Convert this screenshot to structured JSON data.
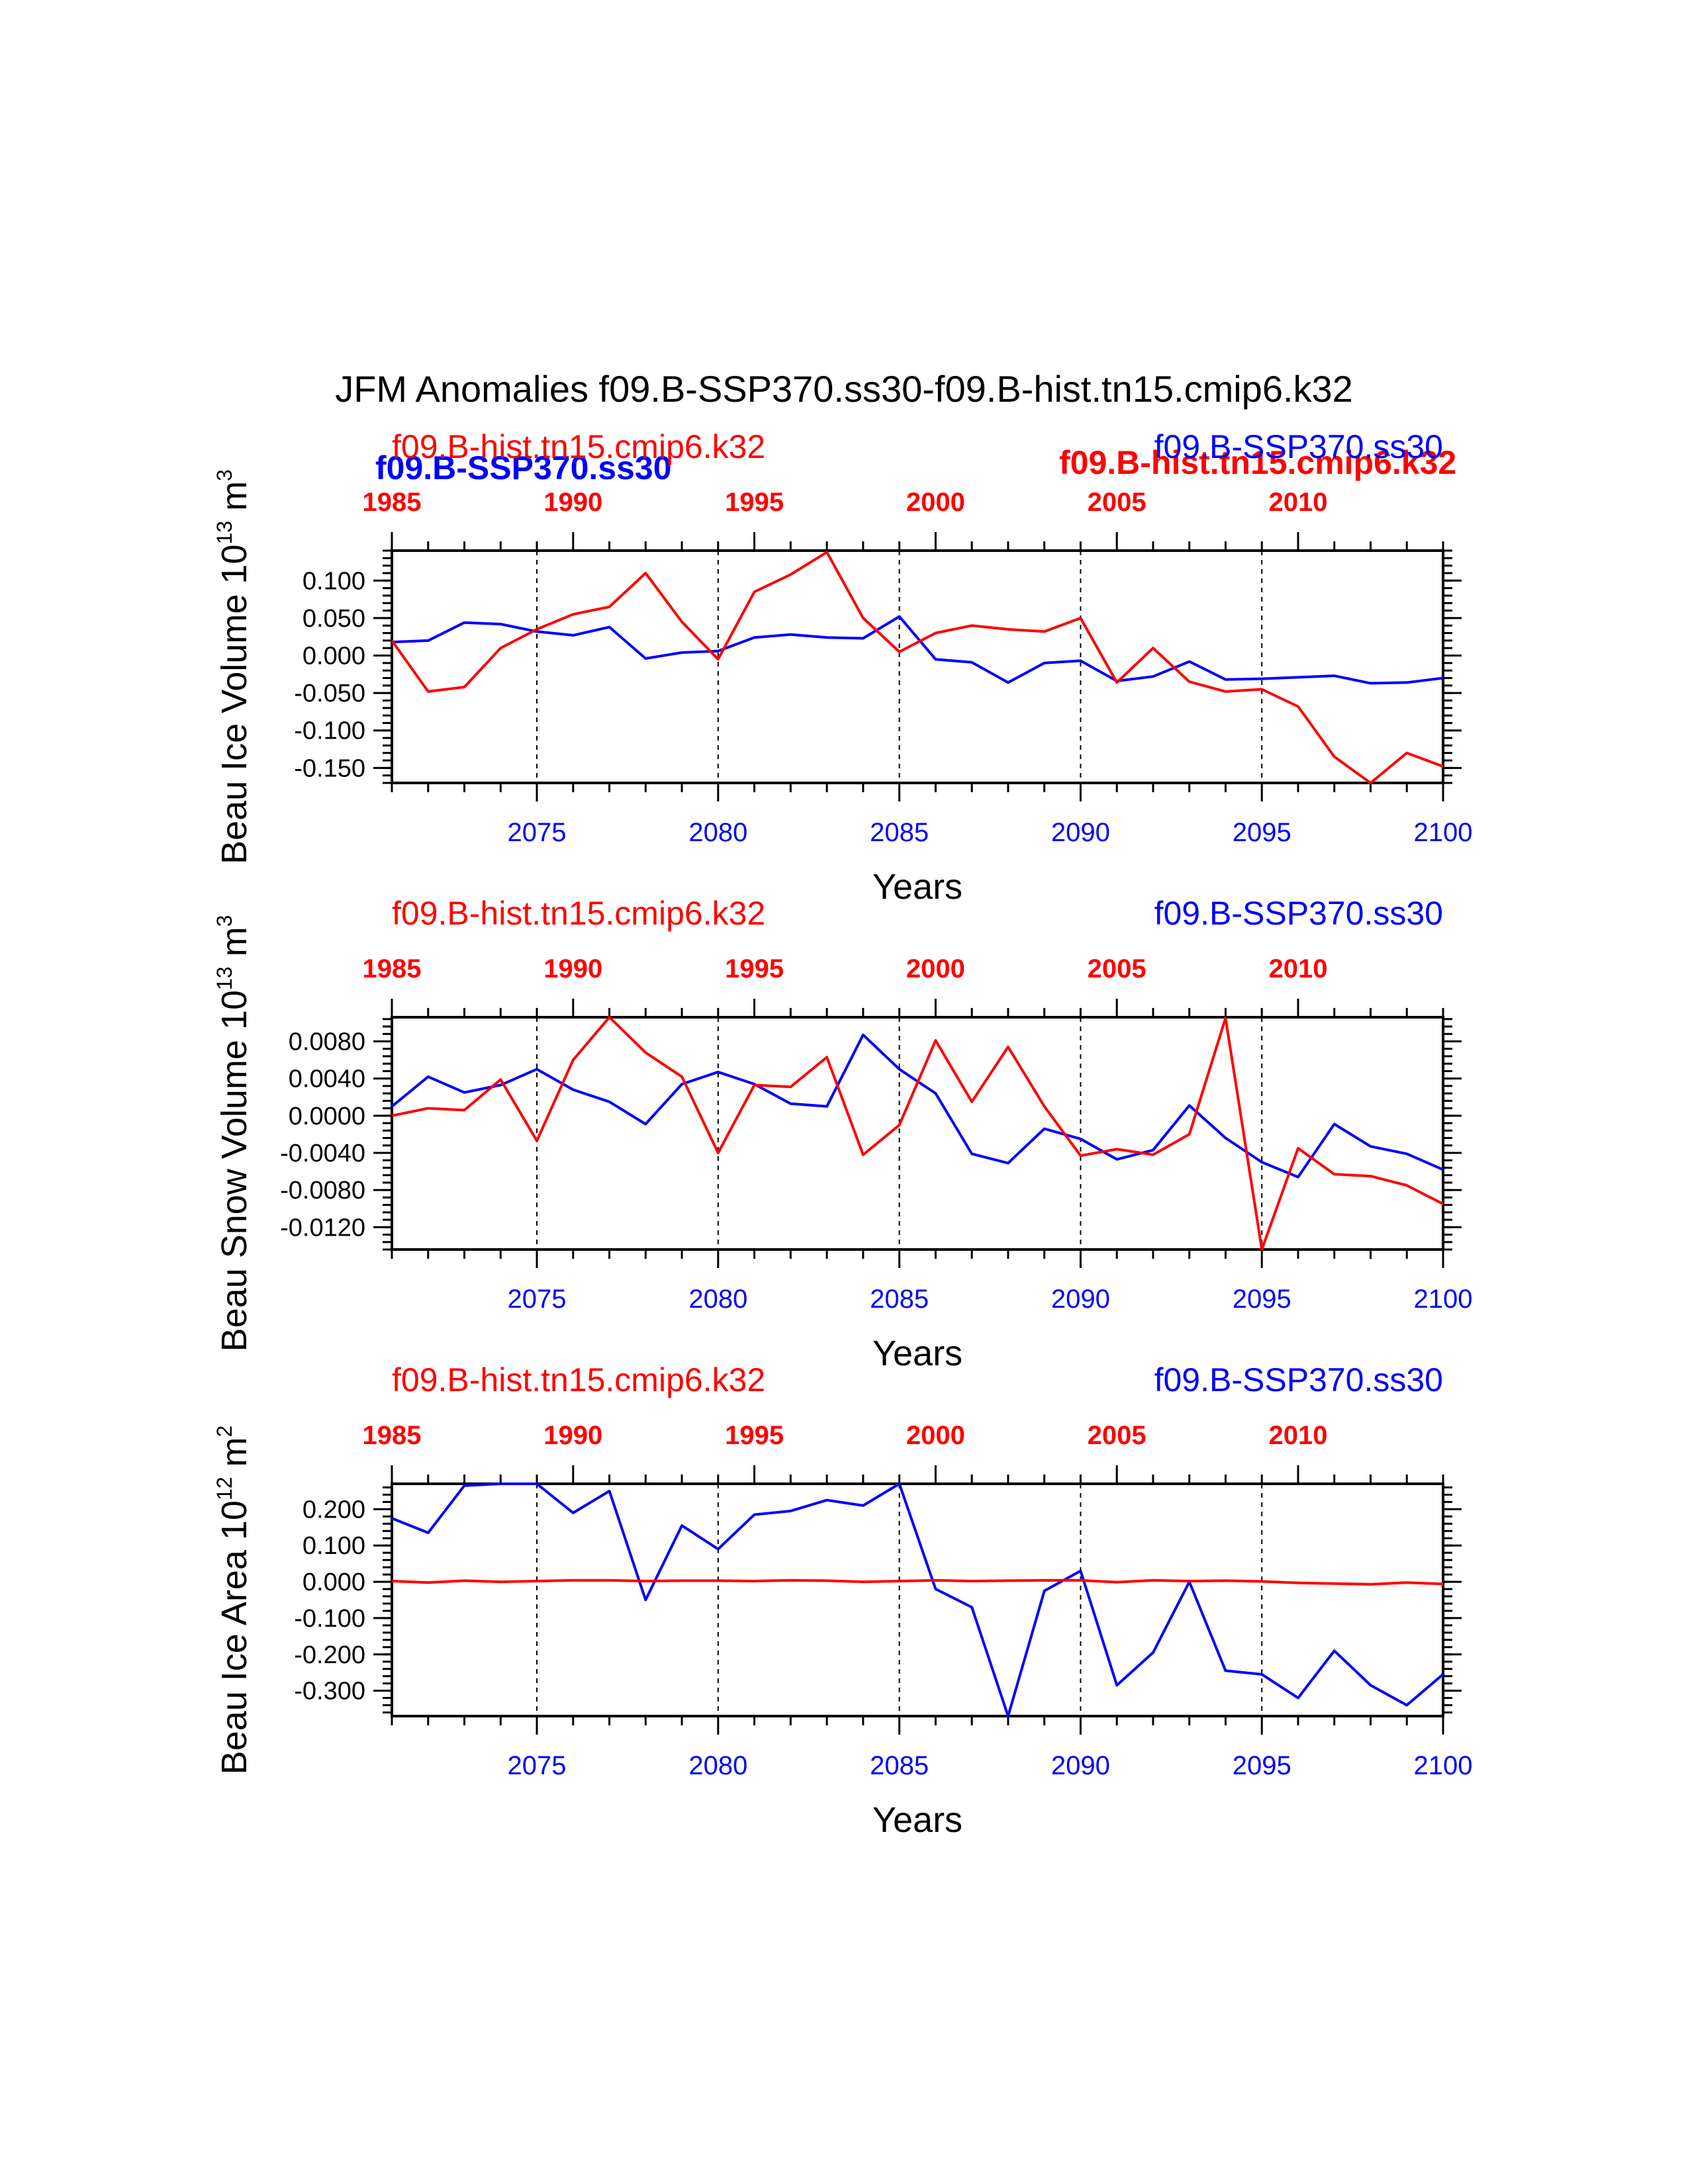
{
  "figure": {
    "title": "JFM Anomalies f09.B-SSP370.ss30-f09.B-hist.tn15.cmip6.k32",
    "colors": {
      "hist": "#ff0000",
      "ssp": "#0000ff",
      "axis": "#000000"
    }
  },
  "overlay_labels": [
    {
      "text": "f09.B-SSP370.ss30",
      "color": "#0000ff"
    },
    {
      "text": "f09.B-hist.tn15.cmip6.k32",
      "color": "#ff0000"
    }
  ],
  "chart_data": [
    {
      "type": "line",
      "title_left": "f09.B-hist.tn15.cmip6.k32",
      "title_right": "f09.B-SSP370.ss30",
      "ylabel": "Beau Ice Volume 10",
      "ylabel_exp": "13",
      "ylabel_unit": " m",
      "ylabel_unit_exp": "3",
      "xlabel": "Years",
      "xlim": [
        2071,
        2100
      ],
      "ylim": [
        -0.17,
        0.14
      ],
      "yticks": [
        0.1,
        0.05,
        0.0,
        -0.05,
        -0.1,
        -0.15
      ],
      "ytick_labels": [
        "0.100",
        "0.050",
        "0.000",
        "-0.050",
        "-0.100",
        "-0.150"
      ],
      "x_bottom_ticks": [
        2075,
        2080,
        2085,
        2090,
        2095,
        2100
      ],
      "x_top_ticks": [
        "1985",
        "1990",
        "1995",
        "2000",
        "2005",
        "2010"
      ],
      "gridlines_x": [
        2075,
        2080,
        2085,
        2090,
        2095
      ],
      "series": [
        {
          "name": "f09.B-hist.tn15.cmip6.k32",
          "color": "#ff0000",
          "x": [
            2071,
            2072,
            2073,
            2074,
            2075,
            2076,
            2077,
            2078,
            2079,
            2080,
            2081,
            2082,
            2083,
            2084,
            2085,
            2086,
            2087,
            2088,
            2089,
            2090,
            2091,
            2092,
            2093,
            2094,
            2095,
            2096,
            2097,
            2098,
            2099,
            2100
          ],
          "values": [
            0.02,
            -0.048,
            -0.042,
            0.01,
            0.035,
            0.055,
            0.065,
            0.11,
            0.045,
            -0.005,
            0.085,
            0.108,
            0.138,
            0.05,
            0.005,
            0.03,
            0.04,
            0.035,
            0.032,
            0.05,
            -0.036,
            0.01,
            -0.035,
            -0.048,
            -0.045,
            -0.068,
            -0.135,
            -0.17,
            -0.13,
            -0.148
          ]
        },
        {
          "name": "f09.B-SSP370.ss30",
          "color": "#0000ff",
          "x": [
            2071,
            2072,
            2073,
            2074,
            2075,
            2076,
            2077,
            2078,
            2079,
            2080,
            2081,
            2082,
            2083,
            2084,
            2085,
            2086,
            2087,
            2088,
            2089,
            2090,
            2091,
            2092,
            2093,
            2094,
            2095,
            2096,
            2097,
            2098,
            2099,
            2100
          ],
          "values": [
            0.018,
            0.02,
            0.044,
            0.042,
            0.032,
            0.027,
            0.038,
            -0.004,
            0.004,
            0.006,
            0.024,
            0.028,
            0.024,
            0.023,
            0.052,
            -0.005,
            -0.009,
            -0.036,
            -0.01,
            -0.007,
            -0.034,
            -0.028,
            -0.008,
            -0.032,
            -0.031,
            -0.029,
            -0.027,
            -0.037,
            -0.036,
            -0.03
          ]
        }
      ]
    },
    {
      "type": "line",
      "title_left": "f09.B-hist.tn15.cmip6.k32",
      "title_right": "f09.B-SSP370.ss30",
      "ylabel": "Beau Snow Volume 10",
      "ylabel_exp": "13",
      "ylabel_unit": " m",
      "ylabel_unit_exp": "3",
      "xlabel": "Years",
      "xlim": [
        2071,
        2100
      ],
      "ylim": [
        -0.0144,
        0.0106
      ],
      "yticks": [
        0.008,
        0.004,
        0.0,
        -0.004,
        -0.008,
        -0.012
      ],
      "ytick_labels": [
        "0.0080",
        "0.0040",
        "0.0000",
        "-0.0040",
        "-0.0080",
        "-0.0120"
      ],
      "x_bottom_ticks": [
        2075,
        2080,
        2085,
        2090,
        2095,
        2100
      ],
      "x_top_ticks": [
        "1985",
        "1990",
        "1995",
        "2000",
        "2005",
        "2010"
      ],
      "gridlines_x": [
        2075,
        2080,
        2085,
        2090,
        2095
      ],
      "series": [
        {
          "name": "f09.B-hist.tn15.cmip6.k32",
          "color": "#ff0000",
          "x": [
            2071,
            2072,
            2073,
            2074,
            2075,
            2076,
            2077,
            2078,
            2079,
            2080,
            2081,
            2082,
            2083,
            2084,
            2085,
            2086,
            2087,
            2088,
            2089,
            2090,
            2091,
            2092,
            2093,
            2094,
            2095,
            2096,
            2097,
            2098,
            2099,
            2100
          ],
          "values": [
            0.0,
            0.0008,
            0.0006,
            0.0039,
            -0.0027,
            0.006,
            0.0106,
            0.0068,
            0.0042,
            -0.004,
            0.0033,
            0.0031,
            0.0063,
            -0.0042,
            -0.001,
            0.0081,
            0.0015,
            0.0074,
            0.001,
            -0.0043,
            -0.0036,
            -0.0042,
            -0.002,
            0.0105,
            -0.0144,
            -0.0035,
            -0.0063,
            -0.0065,
            -0.0075,
            -0.0095
          ]
        },
        {
          "name": "f09.B-SSP370.ss30",
          "color": "#0000ff",
          "x": [
            2071,
            2072,
            2073,
            2074,
            2075,
            2076,
            2077,
            2078,
            2079,
            2080,
            2081,
            2082,
            2083,
            2084,
            2085,
            2086,
            2087,
            2088,
            2089,
            2090,
            2091,
            2092,
            2093,
            2094,
            2095,
            2096,
            2097,
            2098,
            2099,
            2100
          ],
          "values": [
            0.001,
            0.0042,
            0.0025,
            0.0033,
            0.005,
            0.0028,
            0.0015,
            -0.0009,
            0.0034,
            0.0047,
            0.0034,
            0.0013,
            0.001,
            0.0087,
            0.005,
            0.0024,
            -0.0041,
            -0.0051,
            -0.0014,
            -0.0025,
            -0.0047,
            -0.0037,
            0.0011,
            -0.0024,
            -0.005,
            -0.0066,
            -0.0009,
            -0.0033,
            -0.0041,
            -0.0058
          ]
        }
      ]
    },
    {
      "type": "line",
      "title_left": "f09.B-hist.tn15.cmip6.k32",
      "title_right": "f09.B-SSP370.ss30",
      "ylabel": "Beau Ice Area 10",
      "ylabel_exp": "12",
      "ylabel_unit": " m",
      "ylabel_unit_exp": "2",
      "xlabel": "Years",
      "xlim": [
        2071,
        2100
      ],
      "ylim": [
        -0.37,
        0.27
      ],
      "yticks": [
        0.2,
        0.1,
        0.0,
        -0.1,
        -0.2,
        -0.3
      ],
      "ytick_labels": [
        "0.200",
        "0.100",
        "0.000",
        "-0.100",
        "-0.200",
        "-0.300"
      ],
      "x_bottom_ticks": [
        2075,
        2080,
        2085,
        2090,
        2095,
        2100
      ],
      "x_top_ticks": [
        "1985",
        "1990",
        "1995",
        "2000",
        "2005",
        "2010"
      ],
      "gridlines_x": [
        2075,
        2080,
        2085,
        2090,
        2095
      ],
      "series": [
        {
          "name": "f09.B-hist.tn15.cmip6.k32",
          "color": "#ff0000",
          "x": [
            2071,
            2072,
            2073,
            2074,
            2075,
            2076,
            2077,
            2078,
            2079,
            2080,
            2081,
            2082,
            2083,
            2084,
            2085,
            2086,
            2087,
            2088,
            2089,
            2090,
            2091,
            2092,
            2093,
            2094,
            2095,
            2096,
            2097,
            2098,
            2099,
            2100
          ],
          "values": [
            0.002,
            -0.002,
            0.003,
            0.0,
            0.002,
            0.004,
            0.004,
            0.002,
            0.003,
            0.003,
            0.002,
            0.004,
            0.003,
            0.0,
            0.002,
            0.004,
            0.002,
            0.003,
            0.004,
            0.004,
            -0.001,
            0.004,
            0.002,
            0.003,
            0.001,
            -0.003,
            -0.005,
            -0.007,
            -0.002,
            -0.006
          ]
        },
        {
          "name": "f09.B-SSP370.ss30",
          "color": "#0000ff",
          "x": [
            2071,
            2072,
            2073,
            2074,
            2075,
            2076,
            2077,
            2078,
            2079,
            2080,
            2081,
            2082,
            2083,
            2084,
            2085,
            2086,
            2087,
            2088,
            2089,
            2090,
            2091,
            2092,
            2093,
            2094,
            2095,
            2096,
            2097,
            2098,
            2099,
            2100
          ],
          "values": [
            0.175,
            0.135,
            0.265,
            0.27,
            0.27,
            0.19,
            0.25,
            -0.05,
            0.155,
            0.09,
            0.185,
            0.195,
            0.225,
            0.21,
            0.27,
            -0.02,
            -0.07,
            -0.37,
            -0.025,
            0.03,
            -0.285,
            -0.195,
            0.0,
            -0.245,
            -0.255,
            -0.32,
            -0.19,
            -0.285,
            -0.34,
            -0.255
          ]
        }
      ]
    }
  ]
}
